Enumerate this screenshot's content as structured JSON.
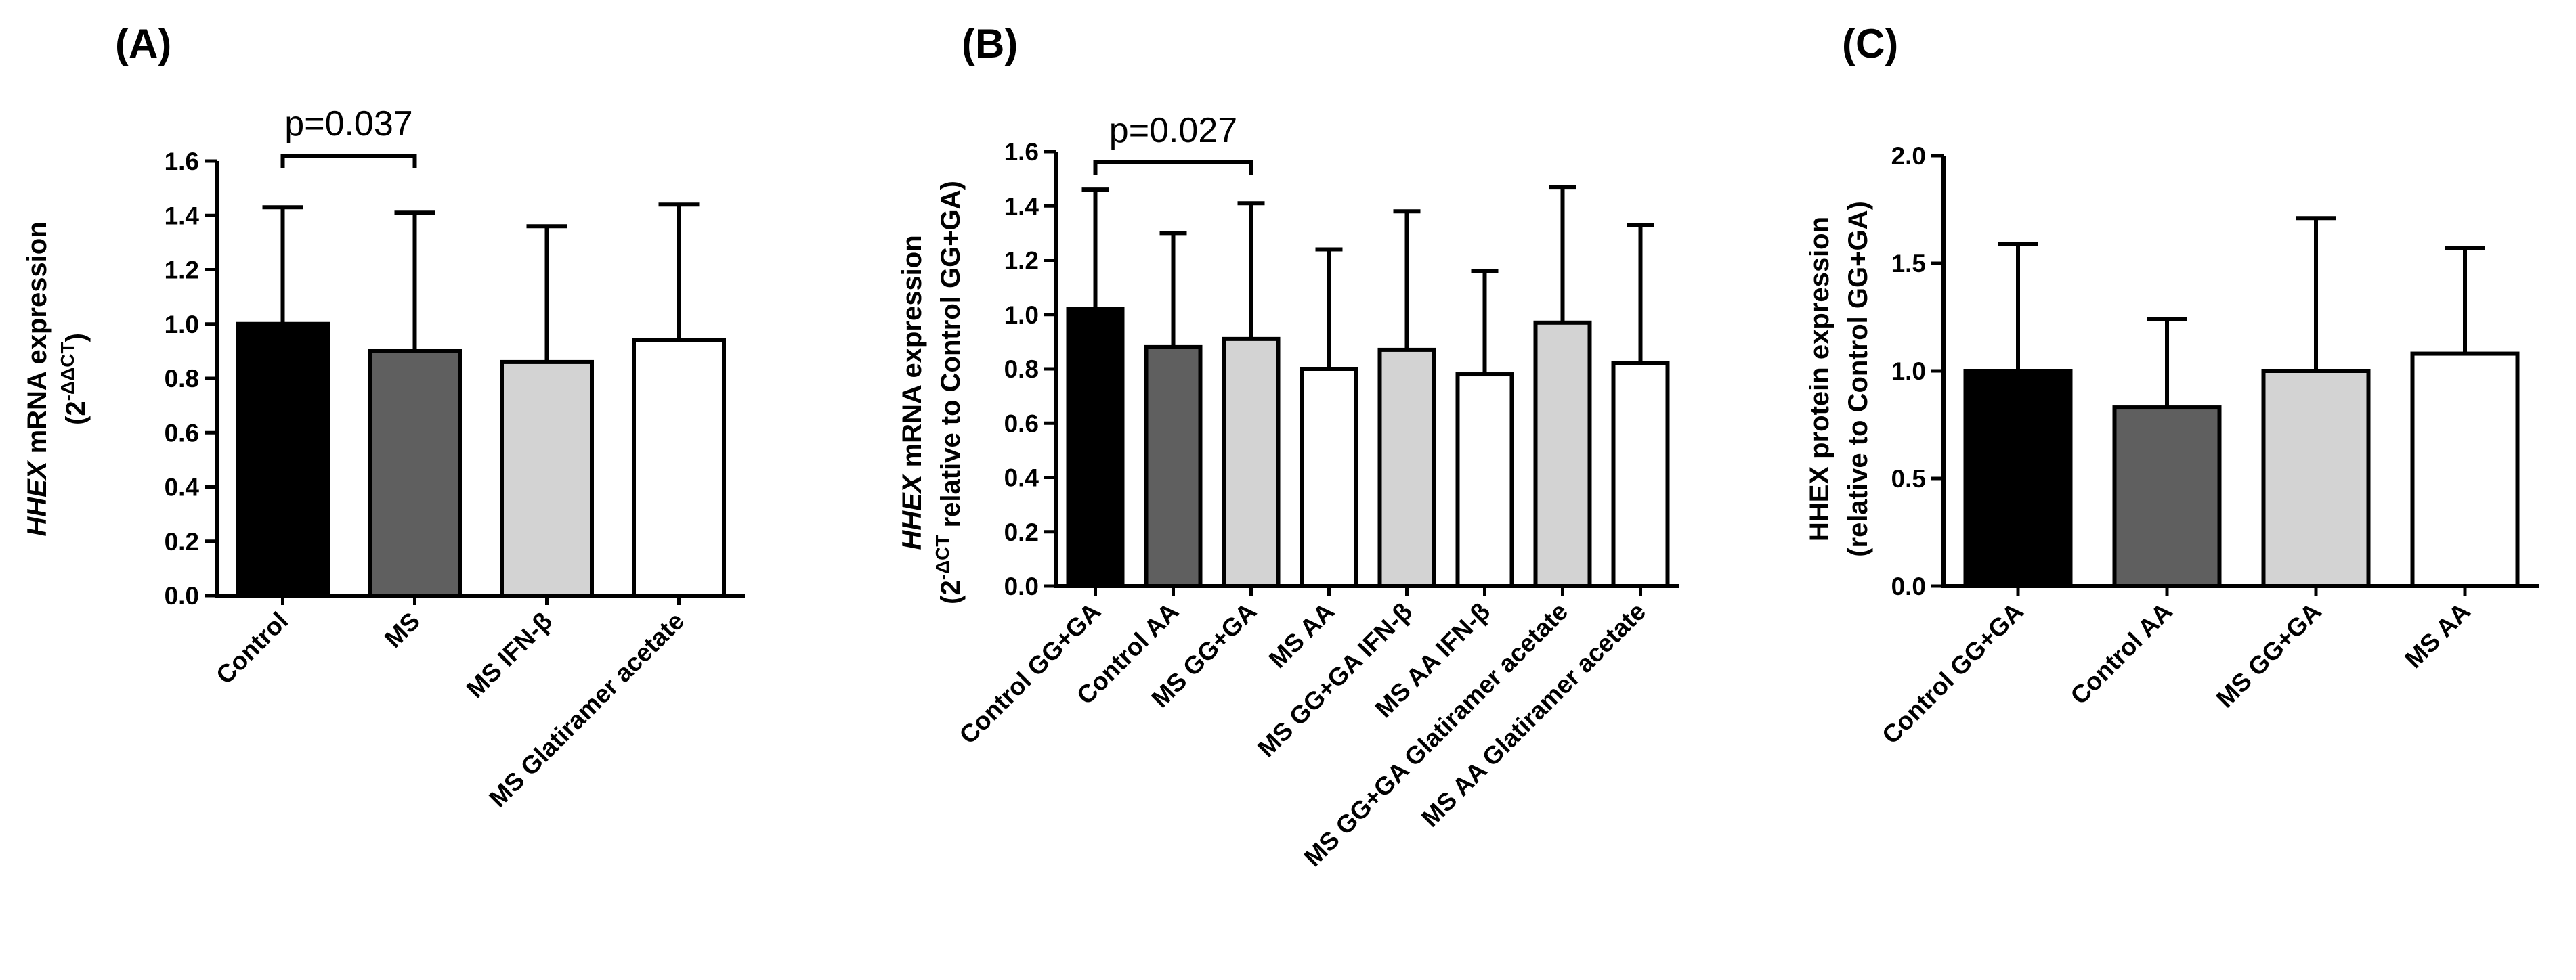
{
  "chart_data": [
    {
      "type": "bar",
      "panel_label": "(A)",
      "ylabel": {
        "italic": "HHEX",
        "rest": " mRNA expression",
        "line2_prefix": "(2",
        "line2_sup": "-ΔΔCT",
        "line2_suffix": ")"
      },
      "ylim": [
        0,
        1.6
      ],
      "yticks": [
        0.0,
        0.2,
        0.4,
        0.6,
        0.8,
        1.0,
        1.2,
        1.4,
        1.6
      ],
      "ytick_labels": [
        "0.0",
        "0.2",
        "0.4",
        "0.6",
        "0.8",
        "1.0",
        "1.2",
        "1.4",
        "1.6"
      ],
      "categories": [
        "Control",
        "MS",
        "MS IFN-β",
        "MS Glatiramer acetate"
      ],
      "values": [
        1.0,
        0.9,
        0.86,
        0.94
      ],
      "errors": [
        0.43,
        0.51,
        0.5,
        0.5
      ],
      "colors": [
        "#000000",
        "#5f5f5f",
        "#d3d3d3",
        "#ffffff"
      ],
      "significance": {
        "from": 0,
        "to": 1,
        "label": "p=0.037",
        "y": 1.62
      }
    },
    {
      "type": "bar",
      "panel_label": "(B)",
      "ylabel": {
        "italic": "HHEX",
        "rest": " mRNA expression",
        "line2_prefix": "(2",
        "line2_sup": "-ΔCT",
        "line2_suffix": " relative to Control GG+GA)"
      },
      "ylim": [
        0,
        1.6
      ],
      "yticks": [
        0.0,
        0.2,
        0.4,
        0.6,
        0.8,
        1.0,
        1.2,
        1.4,
        1.6
      ],
      "ytick_labels": [
        "0.0",
        "0.2",
        "0.4",
        "0.6",
        "0.8",
        "1.0",
        "1.2",
        "1.4",
        "1.6"
      ],
      "categories": [
        "Control GG+GA",
        "Control AA",
        "MS GG+GA",
        "MS AA",
        "MS GG+GA IFN-β",
        "MS AA IFN-β",
        "MS GG+GA Glatiramer acetate",
        "MS AA Glatiramer acetate"
      ],
      "values": [
        1.02,
        0.88,
        0.91,
        0.8,
        0.87,
        0.78,
        0.97,
        0.82
      ],
      "errors": [
        0.44,
        0.42,
        0.5,
        0.44,
        0.51,
        0.38,
        0.5,
        0.51
      ],
      "colors": [
        "#000000",
        "#5f5f5f",
        "#d3d3d3",
        "#ffffff",
        "#d3d3d3",
        "#ffffff",
        "#d3d3d3",
        "#ffffff"
      ],
      "significance": {
        "from": 0,
        "to": 2,
        "label": "p=0.027",
        "y": 1.56
      }
    },
    {
      "type": "bar",
      "panel_label": "(C)",
      "ylabel": {
        "italic": "",
        "rest": "HHEX protein expression",
        "line2_prefix": "(relative to Control GG+GA)",
        "line2_sup": "",
        "line2_suffix": ""
      },
      "ylim": [
        0,
        2.0
      ],
      "yticks": [
        0.0,
        0.5,
        1.0,
        1.5,
        2.0
      ],
      "ytick_labels": [
        "0.0",
        "0.5",
        "1.0",
        "1.5",
        "2.0"
      ],
      "categories": [
        "Control GG+GA",
        "Control AA",
        "MS GG+GA",
        "MS AA"
      ],
      "values": [
        1.0,
        0.83,
        1.0,
        1.08
      ],
      "errors": [
        0.59,
        0.41,
        0.71,
        0.49
      ],
      "colors": [
        "#000000",
        "#5f5f5f",
        "#d3d3d3",
        "#ffffff"
      ],
      "significance": null
    }
  ]
}
